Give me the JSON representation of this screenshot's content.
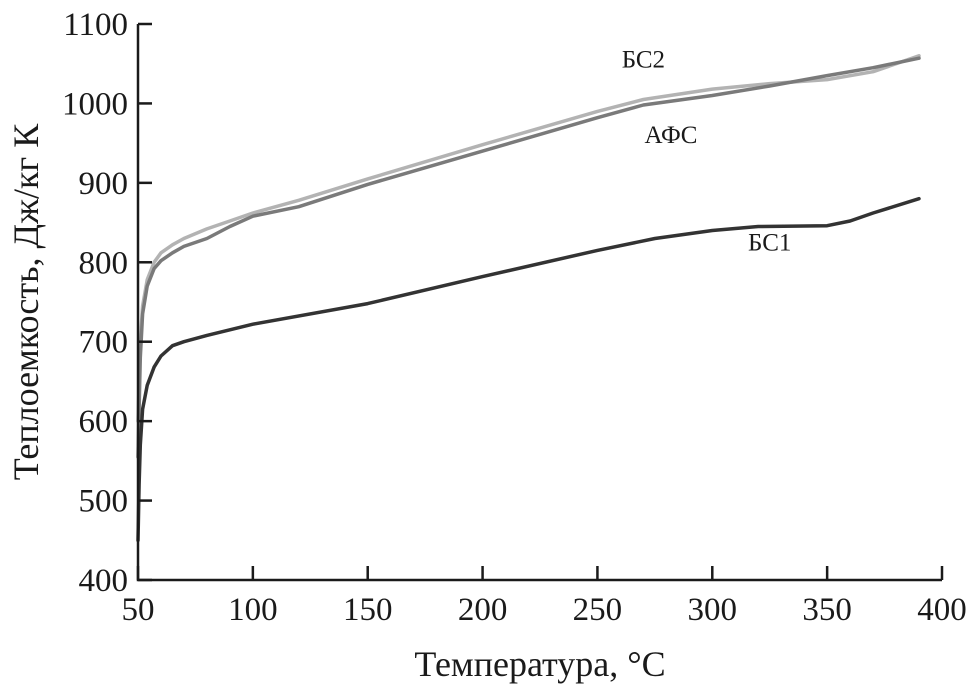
{
  "chart_data": {
    "type": "line",
    "title": "",
    "xlabel": "Температура, °С",
    "ylabel": "Теплоемкость, Дж/кг К",
    "xlim": [
      50,
      400
    ],
    "ylim": [
      400,
      1100
    ],
    "xticks": [
      50,
      100,
      150,
      200,
      250,
      300,
      350,
      400
    ],
    "yticks": [
      400,
      500,
      600,
      700,
      800,
      900,
      1000,
      1100
    ],
    "grid": false,
    "legend": "inline labels",
    "series": [
      {
        "name": "БС2",
        "color": "#b3b3b3",
        "x": [
          50,
          51,
          52,
          54,
          57,
          60,
          65,
          70,
          80,
          90,
          100,
          120,
          150,
          200,
          250,
          270,
          300,
          325,
          350,
          370,
          390
        ],
        "y": [
          600,
          700,
          745,
          778,
          800,
          812,
          822,
          830,
          842,
          852,
          862,
          878,
          905,
          948,
          990,
          1005,
          1018,
          1025,
          1030,
          1040,
          1060
        ]
      },
      {
        "name": "АФС",
        "color": "#7a7a7a",
        "x": [
          50,
          51,
          52,
          54,
          57,
          60,
          65,
          70,
          80,
          90,
          100,
          120,
          150,
          200,
          250,
          270,
          300,
          325,
          350,
          370,
          390
        ],
        "y": [
          555,
          680,
          735,
          770,
          792,
          802,
          812,
          820,
          830,
          845,
          858,
          870,
          898,
          940,
          982,
          998,
          1010,
          1022,
          1035,
          1045,
          1057
        ]
      },
      {
        "name": "БС1",
        "color": "#333333",
        "x": [
          50,
          50.5,
          51,
          52,
          54,
          57,
          60,
          65,
          70,
          80,
          100,
          150,
          200,
          250,
          275,
          300,
          320,
          350,
          360,
          370,
          390
        ],
        "y": [
          450,
          520,
          570,
          615,
          645,
          668,
          682,
          695,
          700,
          708,
          722,
          748,
          782,
          815,
          830,
          840,
          845,
          846,
          852,
          862,
          880
        ]
      }
    ],
    "annotations": [
      {
        "text": "БС2",
        "series": "БС2",
        "x": 270,
        "y": 1045
      },
      {
        "text": "АФС",
        "series": "АФС",
        "x": 282,
        "y": 950
      },
      {
        "text": "БС1",
        "series": "БС1",
        "x": 325,
        "y": 815
      }
    ]
  }
}
